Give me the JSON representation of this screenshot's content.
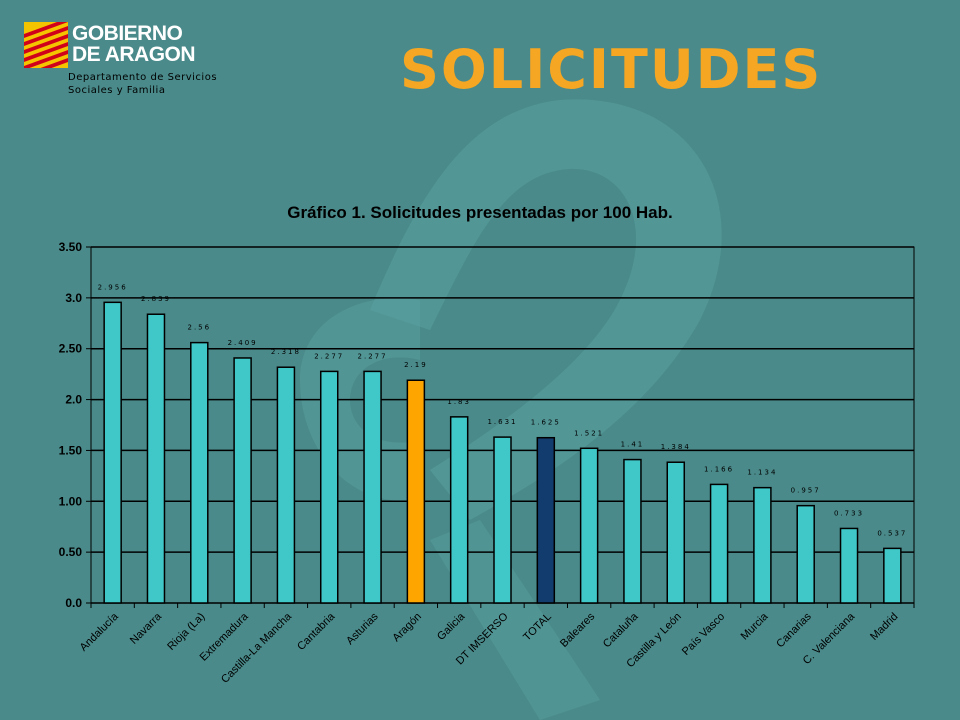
{
  "header": {
    "logo_line1": "GOBIERNO",
    "logo_line2": "DE ARAGON",
    "logo_sub1": "Departamento de Servicios",
    "logo_sub2": "Sociales y Familia",
    "title": "SOLICITUDES"
  },
  "colors": {
    "background": "#4a8a8a",
    "bar_default": "#40c8c8",
    "bar_aragon": "#ffa500",
    "bar_total": "#123c6e",
    "title": "#f5a623"
  },
  "chart_data": {
    "type": "bar",
    "title": "Gráfico 1. Solicitudes presentadas por 100 Hab.",
    "xlabel": "",
    "ylabel": "",
    "ylim": [
      0,
      3.5
    ],
    "yticks": [
      "0.0",
      "0.50",
      "1.00",
      "1.50",
      "2.0",
      "2.50",
      "3.0",
      "3.50"
    ],
    "grid": true,
    "categories": [
      "Andalucía",
      "Navarra",
      "Rioja (La)",
      "Extremadura",
      "Castilla-La Mancha",
      "Cantabria",
      "Asturias",
      "Aragón",
      "Galicia",
      "DT IMSERSO",
      "TOTAL",
      "Baleares",
      "Cataluña",
      "Castilla y León",
      "País Vasco",
      "Murcia",
      "Canarias",
      "C. Valenciana",
      "Madrid"
    ],
    "values": [
      2.956,
      2.839,
      2.56,
      2.409,
      2.318,
      2.277,
      2.277,
      2.19,
      1.83,
      1.631,
      1.625,
      1.521,
      1.41,
      1.384,
      1.166,
      1.134,
      0.957,
      0.733,
      0.537
    ],
    "value_labels": [
      "2.956",
      "2.839",
      "2.56",
      "2.409",
      "2.318",
      "2.277",
      "2.277",
      "2.19",
      "1.83",
      "1.631",
      "1.625",
      "1.521",
      "1.41",
      "1.384",
      "1.166",
      "1.134",
      "0.957",
      "0.733",
      "0.537"
    ],
    "highlight": {
      "Aragón": "#ffa500",
      "TOTAL": "#123c6e"
    }
  }
}
